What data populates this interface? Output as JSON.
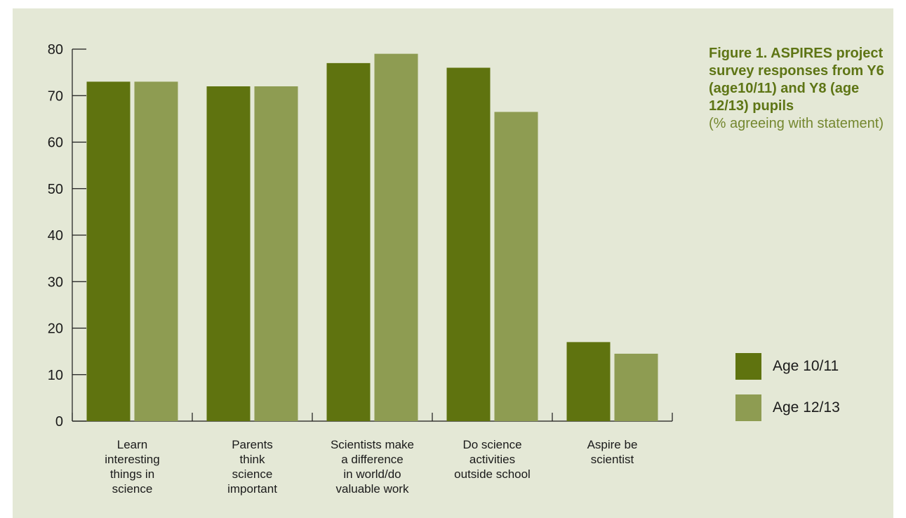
{
  "caption": {
    "title": "Figure 1. ASPIRES project survey responses from Y6 (age10/11) and Y8 (age 12/13) pupils",
    "subtitle": "(% agreeing with statement)"
  },
  "legend": [
    {
      "label": "Age 10/11",
      "color": "#5f730f"
    },
    {
      "label": "Age 12/13",
      "color": "#8e9c52"
    }
  ],
  "chart_data": {
    "type": "bar",
    "categories": [
      [
        "Learn",
        "interesting",
        "things in",
        "science"
      ],
      [
        "Parents",
        "think",
        "science",
        "important"
      ],
      [
        "Scientists make",
        "a difference",
        "in world/do",
        "valuable work"
      ],
      [
        "Do science",
        "activities",
        "outside school"
      ],
      [
        "Aspire be",
        "scientist"
      ]
    ],
    "series": [
      {
        "name": "Age 10/11",
        "color": "#5f730f",
        "values": [
          73,
          72,
          77,
          76,
          17
        ]
      },
      {
        "name": "Age 12/13",
        "color": "#8e9c52",
        "values": [
          73,
          72,
          79,
          66.5,
          14.5
        ]
      }
    ],
    "ylim": [
      0,
      80
    ],
    "yticks": [
      0,
      10,
      20,
      30,
      40,
      50,
      60,
      70,
      80
    ],
    "grid": false,
    "legend_position": "right"
  }
}
